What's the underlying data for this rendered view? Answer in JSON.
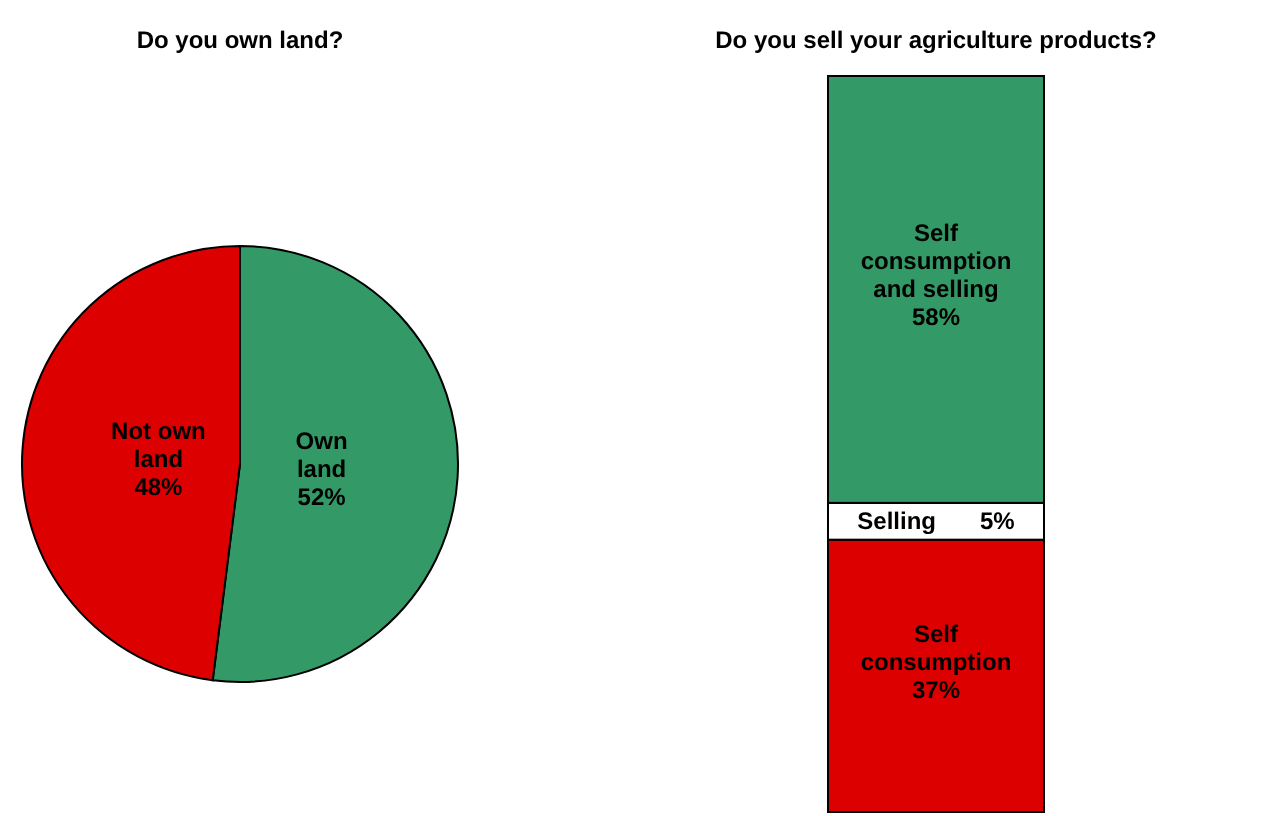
{
  "chart_data": [
    {
      "type": "pie",
      "title": "Do you own land?",
      "categories": [
        "Own land",
        "Not own land"
      ],
      "values": [
        52,
        48
      ],
      "colors": [
        "#339966",
        "#dd0000"
      ],
      "value_labels": [
        "52%",
        "48%"
      ]
    },
    {
      "type": "bar",
      "title": "Do you sell your agriculture products?",
      "categories": [
        null
      ],
      "stacked": true,
      "series": [
        {
          "name": "Self consumption",
          "color": "#dd0000",
          "values": [
            37
          ],
          "value_labels": [
            "37%"
          ]
        },
        {
          "name": "Selling",
          "color": "#ffffff",
          "values": [
            5
          ],
          "value_labels": [
            "5%"
          ]
        },
        {
          "name": "Self consumption and selling",
          "color": "#339966",
          "values": [
            58
          ],
          "value_labels": [
            "58%"
          ]
        }
      ]
    }
  ]
}
